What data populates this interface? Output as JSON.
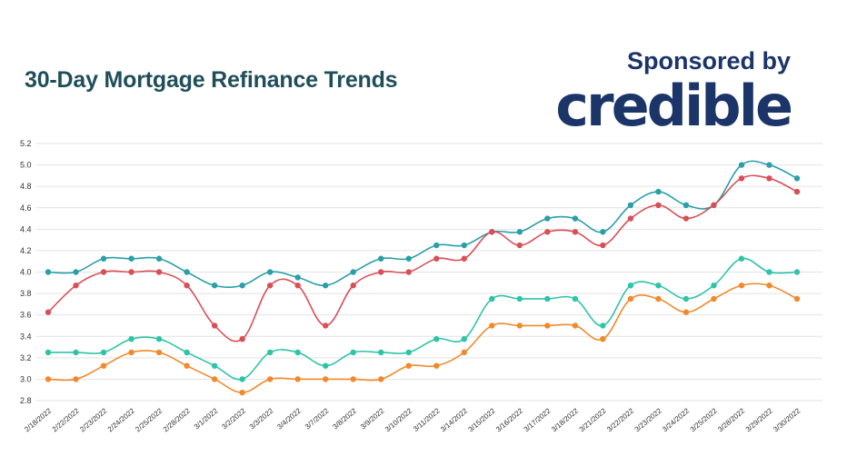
{
  "header": {
    "title": "30-Day Mortgage Refinance Trends",
    "sponsored_label": "Sponsored by",
    "brand": "credible"
  },
  "colors": {
    "title": "#1f4e5a",
    "brand": "#1c3569",
    "grid": "#e2e2e2"
  },
  "chart_data": {
    "type": "line",
    "title": "30-Day Mortgage Refinance Trends",
    "xlabel": "",
    "ylabel": "",
    "ylim": [
      2.8,
      5.2
    ],
    "yticks": [
      "2.8",
      "3.0",
      "3.2",
      "3.4",
      "3.6",
      "3.8",
      "4.0",
      "4.2",
      "4.4",
      "4.6",
      "4.8",
      "5.0",
      "5.2"
    ],
    "grid": true,
    "legend": "none",
    "categories": [
      "2/18/2022",
      "2/22/2022",
      "2/23/2022",
      "2/24/2022",
      "2/25/2022",
      "2/28/2022",
      "3/1/2022",
      "3/2/2022",
      "3/3/2022",
      "3/4/2022",
      "3/7/2022",
      "3/8/2022",
      "3/9/2022",
      "3/10/2022",
      "3/11/2022",
      "3/14/2022",
      "3/15/2022",
      "3/16/2022",
      "3/17/2022",
      "3/18/2022",
      "3/21/2022",
      "3/22/2022",
      "3/23/2022",
      "3/24/2022",
      "3/25/2022",
      "3/28/2022",
      "3/29/2022",
      "3/30/2022"
    ],
    "series": [
      {
        "color": "#2a9fa8",
        "values": [
          4.0,
          4.0,
          4.125,
          4.125,
          4.125,
          4.0,
          3.875,
          3.875,
          4.0,
          3.95,
          3.875,
          4.0,
          4.125,
          4.125,
          4.25,
          4.25,
          4.375,
          4.375,
          4.5,
          4.5,
          4.375,
          4.625,
          4.75,
          4.625,
          4.625,
          5.0,
          5.0,
          4.875
        ]
      },
      {
        "color": "#d94f56",
        "values": [
          3.625,
          3.875,
          4.0,
          4.0,
          4.0,
          3.875,
          3.5,
          3.375,
          3.875,
          3.875,
          3.5,
          3.875,
          4.0,
          4.0,
          4.125,
          4.125,
          4.375,
          4.25,
          4.375,
          4.375,
          4.25,
          4.5,
          4.625,
          4.5,
          4.625,
          4.875,
          4.875,
          4.75
        ]
      },
      {
        "color": "#2ec4a8",
        "values": [
          3.25,
          3.25,
          3.25,
          3.375,
          3.375,
          3.25,
          3.125,
          3.0,
          3.25,
          3.25,
          3.125,
          3.25,
          3.25,
          3.25,
          3.375,
          3.375,
          3.75,
          3.75,
          3.75,
          3.75,
          3.5,
          3.875,
          3.875,
          3.75,
          3.875,
          4.125,
          4.0,
          4.0
        ]
      },
      {
        "color": "#f08a2c",
        "values": [
          3.0,
          3.0,
          3.125,
          3.25,
          3.25,
          3.125,
          3.0,
          2.875,
          3.0,
          3.0,
          3.0,
          3.0,
          3.0,
          3.125,
          3.125,
          3.25,
          3.5,
          3.5,
          3.5,
          3.5,
          3.375,
          3.75,
          3.75,
          3.625,
          3.75,
          3.875,
          3.875,
          3.75
        ]
      }
    ]
  }
}
